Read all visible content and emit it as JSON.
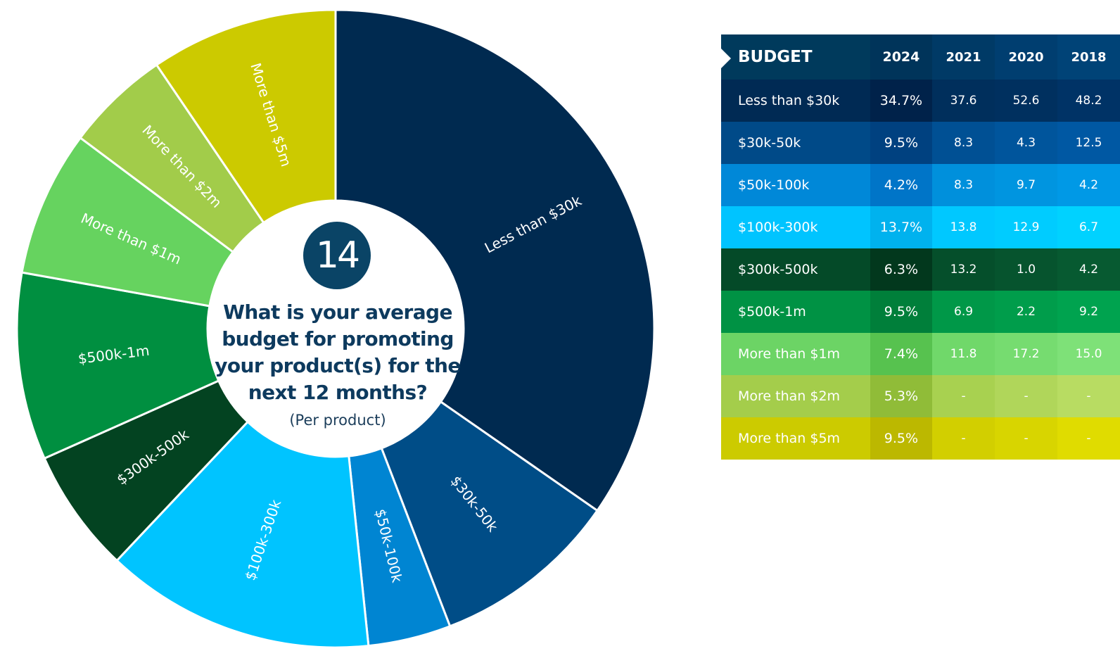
{
  "chart_data": {
    "type": "pie",
    "question_number": "14",
    "title": "What is your average budget for promoting your product(s) for the next 12 months?",
    "subtitle": "(Per product)",
    "slices": [
      {
        "label": "Less than $30k",
        "value": 34.7,
        "color": "#002a50"
      },
      {
        "label": "$30k-50k",
        "value": 9.5,
        "color": "#004d87"
      },
      {
        "label": "$50k-100k",
        "value": 4.2,
        "color": "#0085d2"
      },
      {
        "label": "$100k-300k",
        "value": 13.7,
        "color": "#00c4ff"
      },
      {
        "label": "$300k-500k",
        "value": 6.3,
        "color": "#034321"
      },
      {
        "label": "$500k-1m",
        "value": 9.5,
        "color": "#008f40"
      },
      {
        "label": "More than $1m",
        "value": 7.4,
        "color": "#66d35f"
      },
      {
        "label": "More than $2m",
        "value": 5.3,
        "color": "#a2cc4a"
      },
      {
        "label": "More than $5m",
        "value": 9.5,
        "color": "#ccca00"
      }
    ],
    "table": {
      "headers": [
        "BUDGET",
        "2024",
        "2021",
        "2020",
        "2018"
      ],
      "rows": [
        [
          "Less than $30k",
          "34.7%",
          "37.6",
          "52.6",
          "48.2"
        ],
        [
          "$30k-50k",
          "9.5%",
          "8.3",
          "4.3",
          "12.5"
        ],
        [
          "$50k-100k",
          "4.2%",
          "8.3",
          "9.7",
          "4.2"
        ],
        [
          "$100k-300k",
          "13.7%",
          "13.8",
          "12.9",
          "6.7"
        ],
        [
          "$300k-500k",
          "6.3%",
          "13.2",
          "1.0",
          "4.2"
        ],
        [
          "$500k-1m",
          "9.5%",
          "6.9",
          "2.2",
          "9.2"
        ],
        [
          "More than $1m",
          "7.4%",
          "11.8",
          "17.2",
          "15.0"
        ],
        [
          "More than $2m",
          "5.3%",
          "-",
          "-",
          "-"
        ],
        [
          "More than $5m",
          "9.5%",
          "-",
          "-",
          "-"
        ]
      ]
    }
  },
  "table_colors": {
    "header": [
      "#003a5c",
      "#00345a",
      "#003a66",
      "#003e70",
      "#004377"
    ],
    "rows": [
      [
        "#002a54",
        "#00224a",
        "#002f5c",
        "#00305f",
        "#003366"
      ],
      [
        "#004a88",
        "#004180",
        "#005094",
        "#00559c",
        "#0058a3"
      ],
      [
        "#0088d8",
        "#0075c8",
        "#0090dc",
        "#0095e0",
        "#0099e6"
      ],
      [
        "#00c4ff",
        "#00b2ee",
        "#00c8ff",
        "#00ccff",
        "#00d2ff"
      ],
      [
        "#044a28",
        "#02381d",
        "#054f2b",
        "#06542e",
        "#075a31"
      ],
      [
        "#009244",
        "#007f3a",
        "#009848",
        "#009d4b",
        "#00a34f"
      ],
      [
        "#6cd465",
        "#57c24f",
        "#70d86a",
        "#76dc70",
        "#7ee178"
      ],
      [
        "#a4cd4b",
        "#90bc38",
        "#a8d150",
        "#b0d65a",
        "#b8dc62"
      ],
      [
        "#cccb00",
        "#bcb800",
        "#d2cf00",
        "#d8d500",
        "#e0dc00"
      ]
    ]
  }
}
